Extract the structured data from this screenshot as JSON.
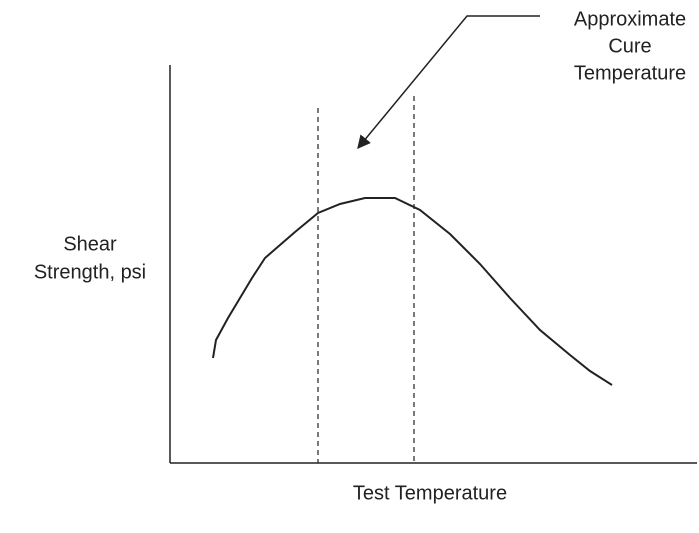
{
  "y_axis_label": [
    "Shear",
    "Strength, psi"
  ],
  "x_axis_label": "Test Temperature",
  "annotation": [
    "Approximate",
    "Cure",
    "Temperature"
  ]
}
